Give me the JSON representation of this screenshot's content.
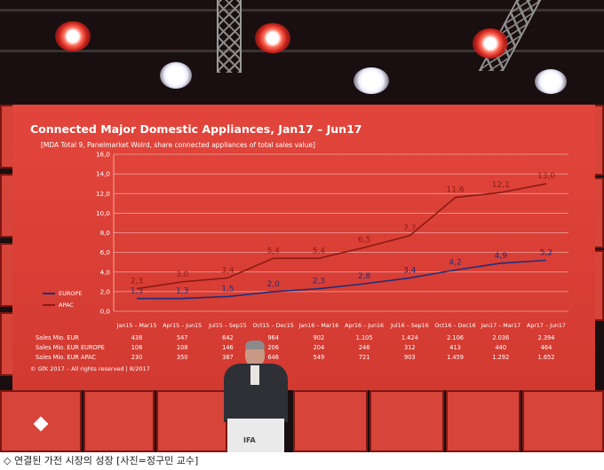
{
  "slide": {
    "title": "Connected Major Domestic Appliances, Jan17 – Jun17",
    "subtitle": "[MDA Total 9, Panelmarket Wolrd, share connected appliances of total sales value]",
    "credit": "© GfK 2017 – All rights reserved | 8/2017"
  },
  "chart_data": {
    "type": "line",
    "categories": [
      "Jan15 – Mar15",
      "Apr15 – Jun15",
      "Jul15 – Sep15",
      "Oct15 – Dec15",
      "Jan16 – Mar16",
      "Apr16 – Jun16",
      "Jul16 – Sep16",
      "Oct16 – Dec16",
      "Jan17 – Mar17",
      "Apr17 – Jun17"
    ],
    "ylim": [
      0,
      16
    ],
    "yticks": [
      "0,0",
      "2,0",
      "4,0",
      "6,0",
      "8,0",
      "10,0",
      "12,0",
      "14,0",
      "16,0"
    ],
    "grid": true,
    "legend_position": "left",
    "series": [
      {
        "name": "EUROPE",
        "color": "#1e2e7a",
        "values": [
          1.3,
          1.3,
          1.5,
          2.0,
          2.3,
          2.8,
          3.4,
          4.2,
          4.9,
          5.2
        ],
        "labels": [
          "1,3",
          "1,3",
          "1,5",
          "2,0",
          "2,3",
          "2,8",
          "3,4",
          "4,2",
          "4,9",
          "5,2"
        ]
      },
      {
        "name": "APAC",
        "color": "#8c1a14",
        "values": [
          2.3,
          3.0,
          3.4,
          5.4,
          5.4,
          6.5,
          7.7,
          11.6,
          12.1,
          13.0
        ],
        "labels": [
          "2,3",
          "3,0",
          "3,4",
          "5,4",
          "5,4",
          "6,5",
          "7,7",
          "11,6",
          "12,1",
          "13,0"
        ]
      }
    ],
    "legend": [
      "EUROPE",
      "APAC"
    ]
  },
  "table": {
    "rows": [
      {
        "label": "Sales Mio. EUR",
        "values": [
          "438",
          "547",
          "642",
          "964",
          "902",
          "1.105",
          "1.424",
          "2.106",
          "2.036",
          "2.394"
        ]
      },
      {
        "label": "Sales Mio. EUR EUROPE",
        "values": [
          "108",
          "108",
          "146",
          "206",
          "204",
          "246",
          "312",
          "413",
          "440",
          "464"
        ]
      },
      {
        "label": "Sales Mio. EUR APAC",
        "values": [
          "230",
          "350",
          "387",
          "646",
          "549",
          "721",
          "903",
          "1.459",
          "1.292",
          "1.652"
        ]
      }
    ]
  },
  "podium": {
    "logo": "IFA"
  },
  "caption": "◇ 연결된 가전 시장의 성장 [사진=정구민 교수]"
}
